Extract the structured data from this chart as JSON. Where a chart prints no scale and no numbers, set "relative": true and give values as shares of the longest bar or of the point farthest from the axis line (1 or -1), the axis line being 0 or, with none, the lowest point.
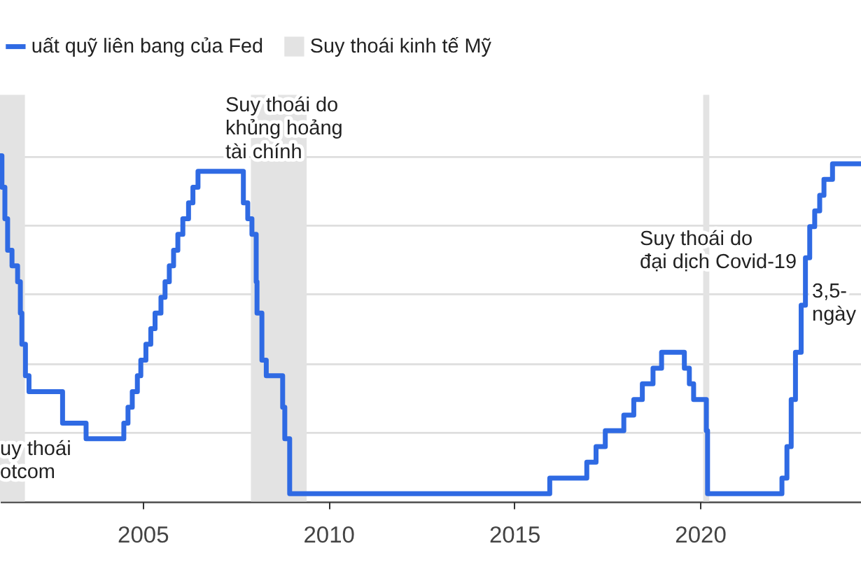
{
  "chart_data": {
    "type": "step",
    "relative": true,
    "legend": "top left",
    "grid": "y",
    "xlim": [
      "2001-03",
      "2024-05"
    ],
    "xticks": [
      "2005",
      "2010",
      "2015",
      "2020"
    ],
    "x": [
      "2001-03",
      "2001-03-20",
      "2001-04-18",
      "2001-05-15",
      "2001-06-27",
      "2001-08-21",
      "2001-09-17",
      "2001-10-02",
      "2001-11-06",
      "2001-12-11",
      "2002-11-06",
      "2003-06-25",
      "2004-06-30",
      "2004-08-10",
      "2004-09-21",
      "2004-11-10",
      "2004-12-14",
      "2005-02-02",
      "2005-03-22",
      "2005-05-03",
      "2005-06-30",
      "2005-08-09",
      "2005-09-20",
      "2005-11-01",
      "2005-12-13",
      "2006-01-31",
      "2006-03-28",
      "2006-05-10",
      "2006-06-29",
      "2007-09-18",
      "2007-10-31",
      "2007-12-11",
      "2008-01-22",
      "2008-01-30",
      "2008-03-18",
      "2008-04-30",
      "2008-10-08",
      "2008-10-29",
      "2008-12-16",
      "2015-12-16",
      "2016-12-14",
      "2017-03-15",
      "2017-06-14",
      "2017-12-13",
      "2018-03-21",
      "2018-06-13",
      "2018-09-26",
      "2018-12-19",
      "2019-07-31",
      "2019-09-18",
      "2019-10-30",
      "2020-03-03",
      "2020-03-15",
      "2022-03-16",
      "2022-05-04",
      "2022-06-15",
      "2022-07-27",
      "2022-09-21",
      "2022-11-02",
      "2022-12-14",
      "2023-02-01",
      "2023-03-22",
      "2023-05-03",
      "2023-07-26",
      "2024-05"
    ],
    "series": [
      {
        "name": "uất quỹ liên bang của Fed",
        "color": "#2f6ae3",
        "values": [
          1,
          0.909,
          0.818,
          0.727,
          0.682,
          0.636,
          0.545,
          0.455,
          0.364,
          0.318,
          0.227,
          0.182,
          0.227,
          0.273,
          0.318,
          0.364,
          0.409,
          0.455,
          0.5,
          0.545,
          0.591,
          0.636,
          0.682,
          0.727,
          0.773,
          0.818,
          0.864,
          0.909,
          0.955,
          0.864,
          0.818,
          0.773,
          0.636,
          0.545,
          0.409,
          0.364,
          0.273,
          0.182,
          0.023,
          0.068,
          0.114,
          0.159,
          0.205,
          0.25,
          0.295,
          0.341,
          0.386,
          0.432,
          0.386,
          0.341,
          0.295,
          0.205,
          0.023,
          0.068,
          0.159,
          0.295,
          0.432,
          0.568,
          0.705,
          0.795,
          0.841,
          0.886,
          0.932,
          0.977,
          0.977
        ]
      }
    ],
    "bands": [
      {
        "axis": "x",
        "from": "2001-03",
        "to": "2001-11",
        "label": "Suy thoái kinh tế Mỹ",
        "color": "#e3e3e3"
      },
      {
        "axis": "x",
        "from": "2007-12",
        "to": "2009-06",
        "color": "#e3e3e3"
      },
      {
        "axis": "x",
        "from": "2020-02",
        "to": "2020-04",
        "color": "#e3e3e3"
      }
    ],
    "annotations": [
      "Suy thoái do\nkhủng hoảng\ntài chính",
      "Suy thoái do\nđại dịch Covid-19",
      "3,5-\nngày",
      "uy thoái\notcom"
    ]
  }
}
